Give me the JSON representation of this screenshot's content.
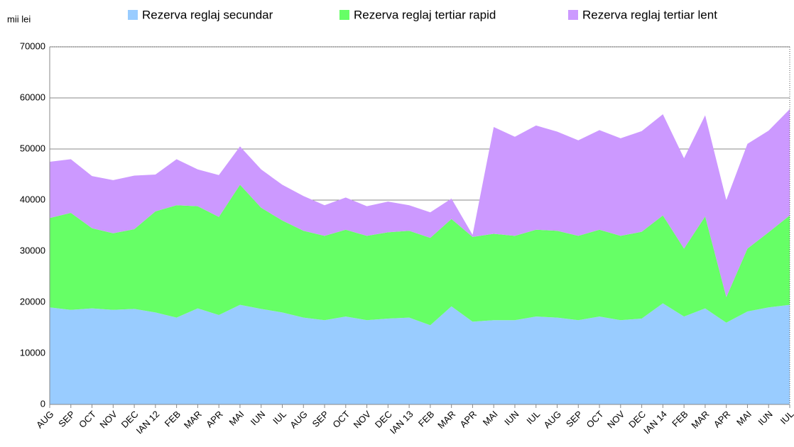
{
  "chart_data": {
    "type": "stacked_area",
    "y_label": "mii lei",
    "categories": [
      "AUG",
      "SEP",
      "OCT",
      "NOV",
      "DEC",
      "IAN 12",
      "FEB",
      "MAR",
      "APR",
      "MAI",
      "IUN",
      "IUL",
      "AUG",
      "SEP",
      "OCT",
      "NOV",
      "DEC",
      "IAN 13",
      "FEB",
      "MAR",
      "APR",
      "MAI",
      "IUN",
      "IUL",
      "AUG",
      "SEP",
      "OCT",
      "NOV",
      "DEC",
      "IAN 14",
      "FEB",
      "MAR",
      "APR",
      "MAI",
      "IUN",
      "IUL"
    ],
    "series": [
      {
        "name": "Rezerva reglaj secundar",
        "color": "#99ccff",
        "values": [
          19000,
          18500,
          18800,
          18500,
          18700,
          18000,
          17000,
          18800,
          17500,
          19500,
          18700,
          18000,
          17000,
          16500,
          17200,
          16500,
          16800,
          17000,
          15500,
          19200,
          16200,
          16500,
          16500,
          17200,
          17000,
          16500,
          17200,
          16500,
          16800,
          19800,
          17200,
          18800,
          16000,
          18200,
          19000,
          19500
        ]
      },
      {
        "name": "Rezerva reglaj tertiar rapid",
        "color": "#66ff66",
        "values": [
          17500,
          19000,
          15700,
          15000,
          15600,
          19800,
          22000,
          20000,
          19200,
          23500,
          19800,
          18000,
          17000,
          16500,
          17000,
          16500,
          16900,
          17000,
          17100,
          17100,
          16600,
          16900,
          16500,
          17000,
          17000,
          16500,
          17000,
          16500,
          17000,
          17200,
          13300,
          18000,
          5000,
          12300,
          14700,
          17500
        ]
      },
      {
        "name": "Rezerva reglaj tertiar lent",
        "color": "#cc99ff",
        "values": [
          11000,
          10500,
          10200,
          10400,
          10500,
          7200,
          9000,
          7200,
          8200,
          7500,
          7500,
          7000,
          6800,
          6000,
          6300,
          5800,
          6000,
          5000,
          5000,
          4000,
          400,
          20900,
          19400,
          20400,
          19400,
          18700,
          19500,
          19100,
          19700,
          19800,
          17700,
          19800,
          19000,
          20500,
          19900,
          20800
        ]
      }
    ],
    "ylim": [
      0,
      70000
    ],
    "yticks": [
      0,
      10000,
      20000,
      30000,
      40000,
      50000,
      60000,
      70000
    ],
    "grid": true
  }
}
